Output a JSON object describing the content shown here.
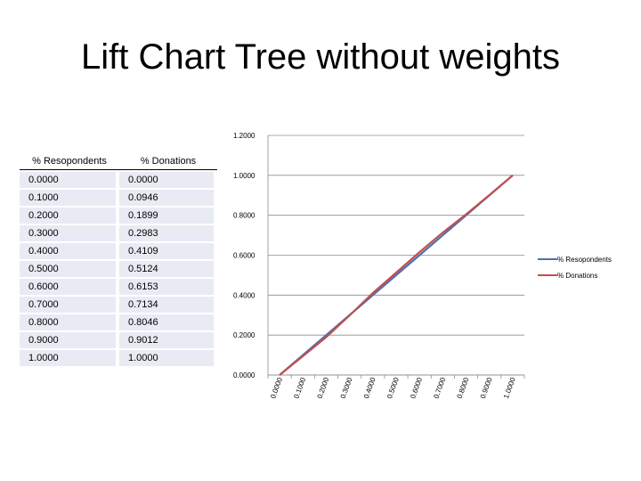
{
  "page": {
    "title": "Lift Chart Tree without weights"
  },
  "table": {
    "headers": [
      "% Resopondents",
      "% Donations"
    ],
    "rows": [
      [
        "0.0000",
        "0.0000"
      ],
      [
        "0.1000",
        "0.0946"
      ],
      [
        "0.2000",
        "0.1899"
      ],
      [
        "0.3000",
        "0.2983"
      ],
      [
        "0.4000",
        "0.4109"
      ],
      [
        "0.5000",
        "0.5124"
      ],
      [
        "0.6000",
        "0.6153"
      ],
      [
        "0.7000",
        "0.7134"
      ],
      [
        "0.8000",
        "0.8046"
      ],
      [
        "0.9000",
        "0.9012"
      ],
      [
        "1.0000",
        "1.0000"
      ]
    ]
  },
  "chart_data": {
    "type": "line",
    "title": "",
    "xlabel": "",
    "ylabel": "",
    "x": [
      0.0,
      0.1,
      0.2,
      0.3,
      0.4,
      0.5,
      0.6,
      0.7,
      0.8,
      0.9,
      1.0
    ],
    "x_tick_labels": [
      "0.0000",
      "0.1000",
      "0.2000",
      "0.3000",
      "0.4000",
      "0.5000",
      "0.6000",
      "0.7000",
      "0.8000",
      "0.9000",
      "1.0000"
    ],
    "y_tick_labels": [
      "0.0000",
      "0.2000",
      "0.4000",
      "0.6000",
      "0.8000",
      "1.0000",
      "1.2000"
    ],
    "ylim": [
      0,
      1.2
    ],
    "grid": true,
    "legend_position": "right",
    "series": [
      {
        "name": "% Resopondents",
        "color": "#4f6fb0",
        "values": [
          0.0,
          0.1,
          0.2,
          0.3,
          0.4,
          0.5,
          0.6,
          0.7,
          0.8,
          0.9,
          1.0
        ]
      },
      {
        "name": "% Donations",
        "color": "#c0504d",
        "values": [
          0.0,
          0.0946,
          0.1899,
          0.2983,
          0.4109,
          0.5124,
          0.6153,
          0.7134,
          0.8046,
          0.9012,
          1.0
        ]
      }
    ]
  }
}
